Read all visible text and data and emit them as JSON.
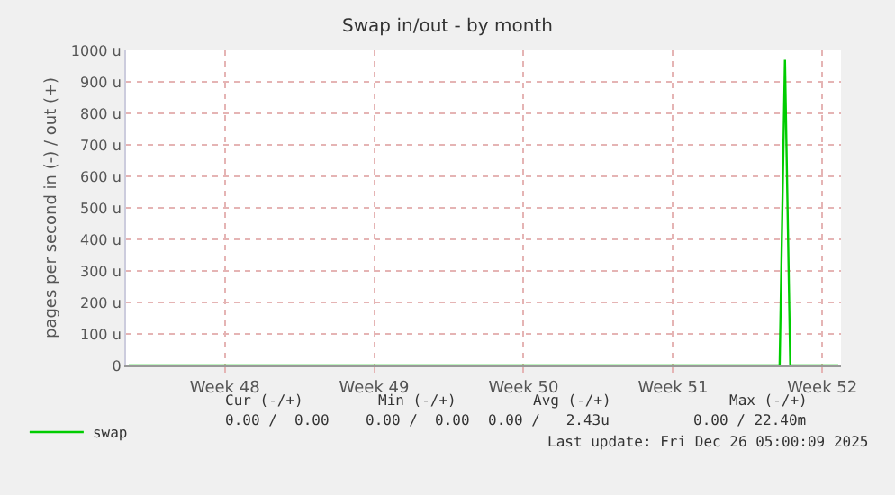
{
  "chart_data": {
    "type": "line",
    "title": "Swap in/out - by month",
    "ylabel": "pages per second in (-) / out (+)",
    "categories": [
      null,
      null,
      null,
      null,
      null,
      null,
      null,
      null,
      null,
      null,
      null,
      null,
      null,
      null,
      null,
      null,
      null,
      null,
      "Week 48",
      null,
      null,
      null,
      null,
      null,
      null,
      null,
      null,
      null,
      null,
      null,
      null,
      null,
      null,
      null,
      null,
      null,
      null,
      null,
      null,
      null,
      null,
      null,
      null,
      null,
      null,
      null,
      "Week 49",
      null,
      null,
      null,
      null,
      null,
      null,
      null,
      null,
      null,
      null,
      null,
      null,
      null,
      null,
      null,
      null,
      null,
      null,
      null,
      null,
      null,
      null,
      null,
      null,
      null,
      null,
      null,
      "Week 50",
      null,
      null,
      null,
      null,
      null,
      null,
      null,
      null,
      null,
      null,
      null,
      null,
      null,
      null,
      null,
      null,
      null,
      null,
      null,
      null,
      null,
      null,
      null,
      null,
      null,
      null,
      null,
      "Week 51",
      null,
      null,
      null,
      null,
      null,
      null,
      null,
      null,
      null,
      null,
      null,
      null,
      null,
      null,
      null,
      null,
      null,
      null,
      null,
      null,
      null,
      null,
      null,
      null,
      null,
      null,
      null,
      "Week 52",
      null,
      null,
      null
    ],
    "series": [
      {
        "name": "swap",
        "color": "#00cc00",
        "values": [
          0,
          0,
          0,
          0,
          0,
          0,
          0,
          0,
          0,
          0,
          0,
          0,
          0,
          0,
          0,
          0,
          0,
          0,
          0,
          0,
          0,
          0,
          0,
          0,
          0,
          0,
          0,
          0,
          0,
          0,
          0,
          0,
          0,
          0,
          0,
          0,
          0,
          0,
          0,
          0,
          0,
          0,
          0,
          0,
          0,
          0,
          0,
          0,
          0,
          0,
          0,
          0,
          0,
          0,
          0,
          0,
          0,
          0,
          0,
          0,
          0,
          0,
          0,
          0,
          0,
          0,
          0,
          0,
          0,
          0,
          0,
          0,
          0,
          0,
          0,
          0,
          0,
          0,
          0,
          0,
          0,
          0,
          0,
          0,
          0,
          0,
          0,
          0,
          0,
          0,
          0,
          0,
          0,
          0,
          0,
          0,
          0,
          0,
          0,
          0,
          0,
          0,
          0,
          0,
          0,
          0,
          0,
          0,
          0,
          0,
          0,
          0,
          0,
          0,
          0,
          0,
          0,
          0,
          0,
          0,
          0,
          0,
          0,
          970,
          0,
          0,
          0,
          0,
          0,
          0,
          0,
          0,
          0,
          0
        ]
      }
    ],
    "ylim": [
      0,
      1000
    ],
    "yticks": [
      0,
      {
        "value": 100,
        "label": "100 u"
      },
      {
        "value": 200,
        "label": "200 u"
      },
      {
        "value": 300,
        "label": "300 u"
      },
      {
        "value": 400,
        "label": "400 u"
      },
      {
        "value": 500,
        "label": "500 u"
      },
      {
        "value": 600,
        "label": "600 u"
      },
      {
        "value": 700,
        "label": "700 u"
      },
      {
        "value": 800,
        "label": "800 u"
      },
      {
        "value": 900,
        "label": "900 u"
      },
      {
        "value": 1000,
        "label": "1000 u"
      }
    ],
    "grid": true,
    "legend": "bottom left",
    "marker": "none",
    "line_style": "solid",
    "annotations": [
      "Cur (-/+)",
      "Min (-/+)",
      "Avg (-/+)",
      "Max (-/+)",
      "0.00 /  0.00",
      "0.00 /  0.00",
      "0.00 /   2.43u",
      "0.00 / 22.40m",
      "Last update: Fri Dec 26 05:00:09 2025"
    ]
  }
}
